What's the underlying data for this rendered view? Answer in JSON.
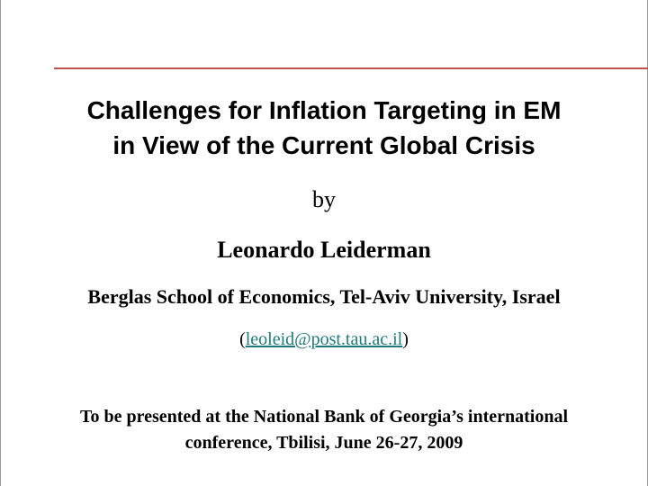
{
  "slide": {
    "title_lines": [
      "Challenges for Inflation Targeting in EM",
      "in View of the Current Global Crisis"
    ],
    "by": "by",
    "author": "Leonardo Leiderman",
    "affiliation": "Berglas School of Economics, Tel-Aviv University, Israel",
    "email": {
      "open": "(",
      "address": "leoleid@post.tau.ac.il",
      "close": ")"
    },
    "footer_lines": [
      "To be presented at the National Bank of Georgia’s international",
      "conference, Tbilisi, June 26-27, 2009"
    ]
  }
}
